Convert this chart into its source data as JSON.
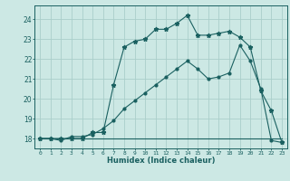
{
  "title": "",
  "xlabel": "Humidex (Indice chaleur)",
  "bg_color": "#cce8e4",
  "grid_color": "#aaceca",
  "line_color": "#1a6060",
  "xlim": [
    -0.5,
    23.5
  ],
  "ylim": [
    17.5,
    24.7
  ],
  "xticks": [
    0,
    1,
    2,
    3,
    4,
    5,
    6,
    7,
    8,
    9,
    10,
    11,
    12,
    13,
    14,
    15,
    16,
    17,
    18,
    19,
    20,
    21,
    22,
    23
  ],
  "yticks": [
    18,
    19,
    20,
    21,
    22,
    23,
    24
  ],
  "line1_x": [
    0,
    1,
    2,
    3,
    4,
    5,
    6,
    7,
    8,
    9,
    10,
    11,
    12,
    13,
    14,
    15,
    16,
    17,
    18,
    19,
    20,
    21,
    22,
    23
  ],
  "line1_y": [
    18.0,
    18.0,
    18.0,
    18.0,
    18.0,
    18.3,
    18.3,
    20.7,
    22.6,
    22.9,
    23.0,
    23.5,
    23.5,
    23.8,
    24.2,
    23.2,
    23.2,
    23.3,
    23.4,
    23.1,
    22.6,
    20.4,
    19.4,
    17.8
  ],
  "line2_x": [
    0,
    1,
    2,
    3,
    4,
    5,
    6,
    7,
    8,
    9,
    10,
    11,
    12,
    13,
    14,
    15,
    16,
    17,
    18,
    19,
    20,
    21,
    22,
    23
  ],
  "line2_y": [
    18.0,
    18.0,
    17.9,
    18.1,
    18.1,
    18.2,
    18.5,
    18.9,
    19.5,
    19.9,
    20.3,
    20.7,
    21.1,
    21.5,
    21.9,
    21.5,
    21.0,
    21.1,
    21.3,
    22.7,
    21.9,
    20.5,
    17.9,
    17.8
  ],
  "line3_x": [
    0,
    1,
    2,
    3,
    4,
    5,
    6,
    7,
    8,
    9,
    10,
    11,
    12,
    13,
    14,
    15,
    16,
    17,
    18,
    19,
    20,
    21,
    22,
    23
  ],
  "line3_y": [
    18.0,
    18.0,
    18.0,
    18.0,
    18.0,
    18.0,
    18.0,
    18.0,
    18.0,
    18.0,
    18.0,
    18.0,
    18.0,
    18.0,
    18.0,
    18.0,
    18.0,
    18.0,
    18.0,
    18.0,
    18.0,
    18.0,
    18.0,
    18.0
  ]
}
